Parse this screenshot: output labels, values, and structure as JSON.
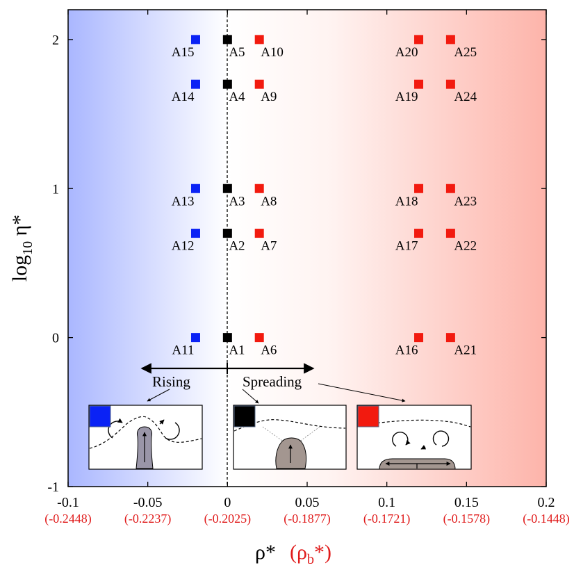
{
  "chart_data": {
    "type": "scatter",
    "xlabel": "ρ*",
    "xlabel_secondary": "(ρb*)",
    "ylabel": "log10 η*",
    "xlim": [
      -0.1,
      0.2
    ],
    "ylim": [
      -1,
      2.2
    ],
    "x_ticks": [
      {
        "value": -0.1,
        "label": "-0.1",
        "sub": "(-0.2448)"
      },
      {
        "value": -0.05,
        "label": "-0.05",
        "sub": "(-0.2237)"
      },
      {
        "value": 0,
        "label": "0",
        "sub": "(-0.2025)"
      },
      {
        "value": 0.05,
        "label": "0.05",
        "sub": "(-0.1877)"
      },
      {
        "value": 0.1,
        "label": "0.1",
        "sub": "(-0.1721)"
      },
      {
        "value": 0.15,
        "label": "0.15",
        "sub": "(-0.1578)"
      },
      {
        "value": 0.2,
        "label": "0.2",
        "sub": "(-0.1448)"
      }
    ],
    "y_ticks": [
      {
        "value": -1,
        "label": "-1"
      },
      {
        "value": 0,
        "label": "0"
      },
      {
        "value": 1,
        "label": "1"
      },
      {
        "value": 2,
        "label": "2"
      }
    ],
    "colors": {
      "blue": "#0a22f5",
      "black": "#000000",
      "red": "#f21a0f"
    },
    "points": [
      {
        "id": "A1",
        "x": 0,
        "y": 0,
        "color": "black"
      },
      {
        "id": "A2",
        "x": 0,
        "y": 0.7,
        "color": "black"
      },
      {
        "id": "A3",
        "x": 0,
        "y": 1,
        "color": "black"
      },
      {
        "id": "A4",
        "x": 0,
        "y": 1.7,
        "color": "black"
      },
      {
        "id": "A5",
        "x": 0,
        "y": 2,
        "color": "black"
      },
      {
        "id": "A6",
        "x": 0.02,
        "y": 0,
        "color": "red"
      },
      {
        "id": "A7",
        "x": 0.02,
        "y": 0.7,
        "color": "red"
      },
      {
        "id": "A8",
        "x": 0.02,
        "y": 1,
        "color": "red"
      },
      {
        "id": "A9",
        "x": 0.02,
        "y": 1.7,
        "color": "red"
      },
      {
        "id": "A10",
        "x": 0.02,
        "y": 2,
        "color": "red"
      },
      {
        "id": "A11",
        "x": -0.02,
        "y": 0,
        "color": "blue"
      },
      {
        "id": "A12",
        "x": -0.02,
        "y": 0.7,
        "color": "blue"
      },
      {
        "id": "A13",
        "x": -0.02,
        "y": 1,
        "color": "blue"
      },
      {
        "id": "A14",
        "x": -0.02,
        "y": 1.7,
        "color": "blue"
      },
      {
        "id": "A15",
        "x": -0.02,
        "y": 2,
        "color": "blue"
      },
      {
        "id": "A16",
        "x": 0.12,
        "y": 0,
        "color": "red"
      },
      {
        "id": "A17",
        "x": 0.12,
        "y": 0.7,
        "color": "red"
      },
      {
        "id": "A18",
        "x": 0.12,
        "y": 1,
        "color": "red"
      },
      {
        "id": "A19",
        "x": 0.12,
        "y": 1.7,
        "color": "red"
      },
      {
        "id": "A20",
        "x": 0.12,
        "y": 2,
        "color": "red"
      },
      {
        "id": "A21",
        "x": 0.14,
        "y": 0,
        "color": "red"
      },
      {
        "id": "A22",
        "x": 0.14,
        "y": 0.7,
        "color": "red"
      },
      {
        "id": "A23",
        "x": 0.14,
        "y": 1,
        "color": "red"
      },
      {
        "id": "A24",
        "x": 0.14,
        "y": 1.7,
        "color": "red"
      },
      {
        "id": "A25",
        "x": 0.14,
        "y": 2,
        "color": "red"
      }
    ],
    "annotations": [
      {
        "text": "Rising"
      },
      {
        "text": "Spreading"
      }
    ]
  }
}
